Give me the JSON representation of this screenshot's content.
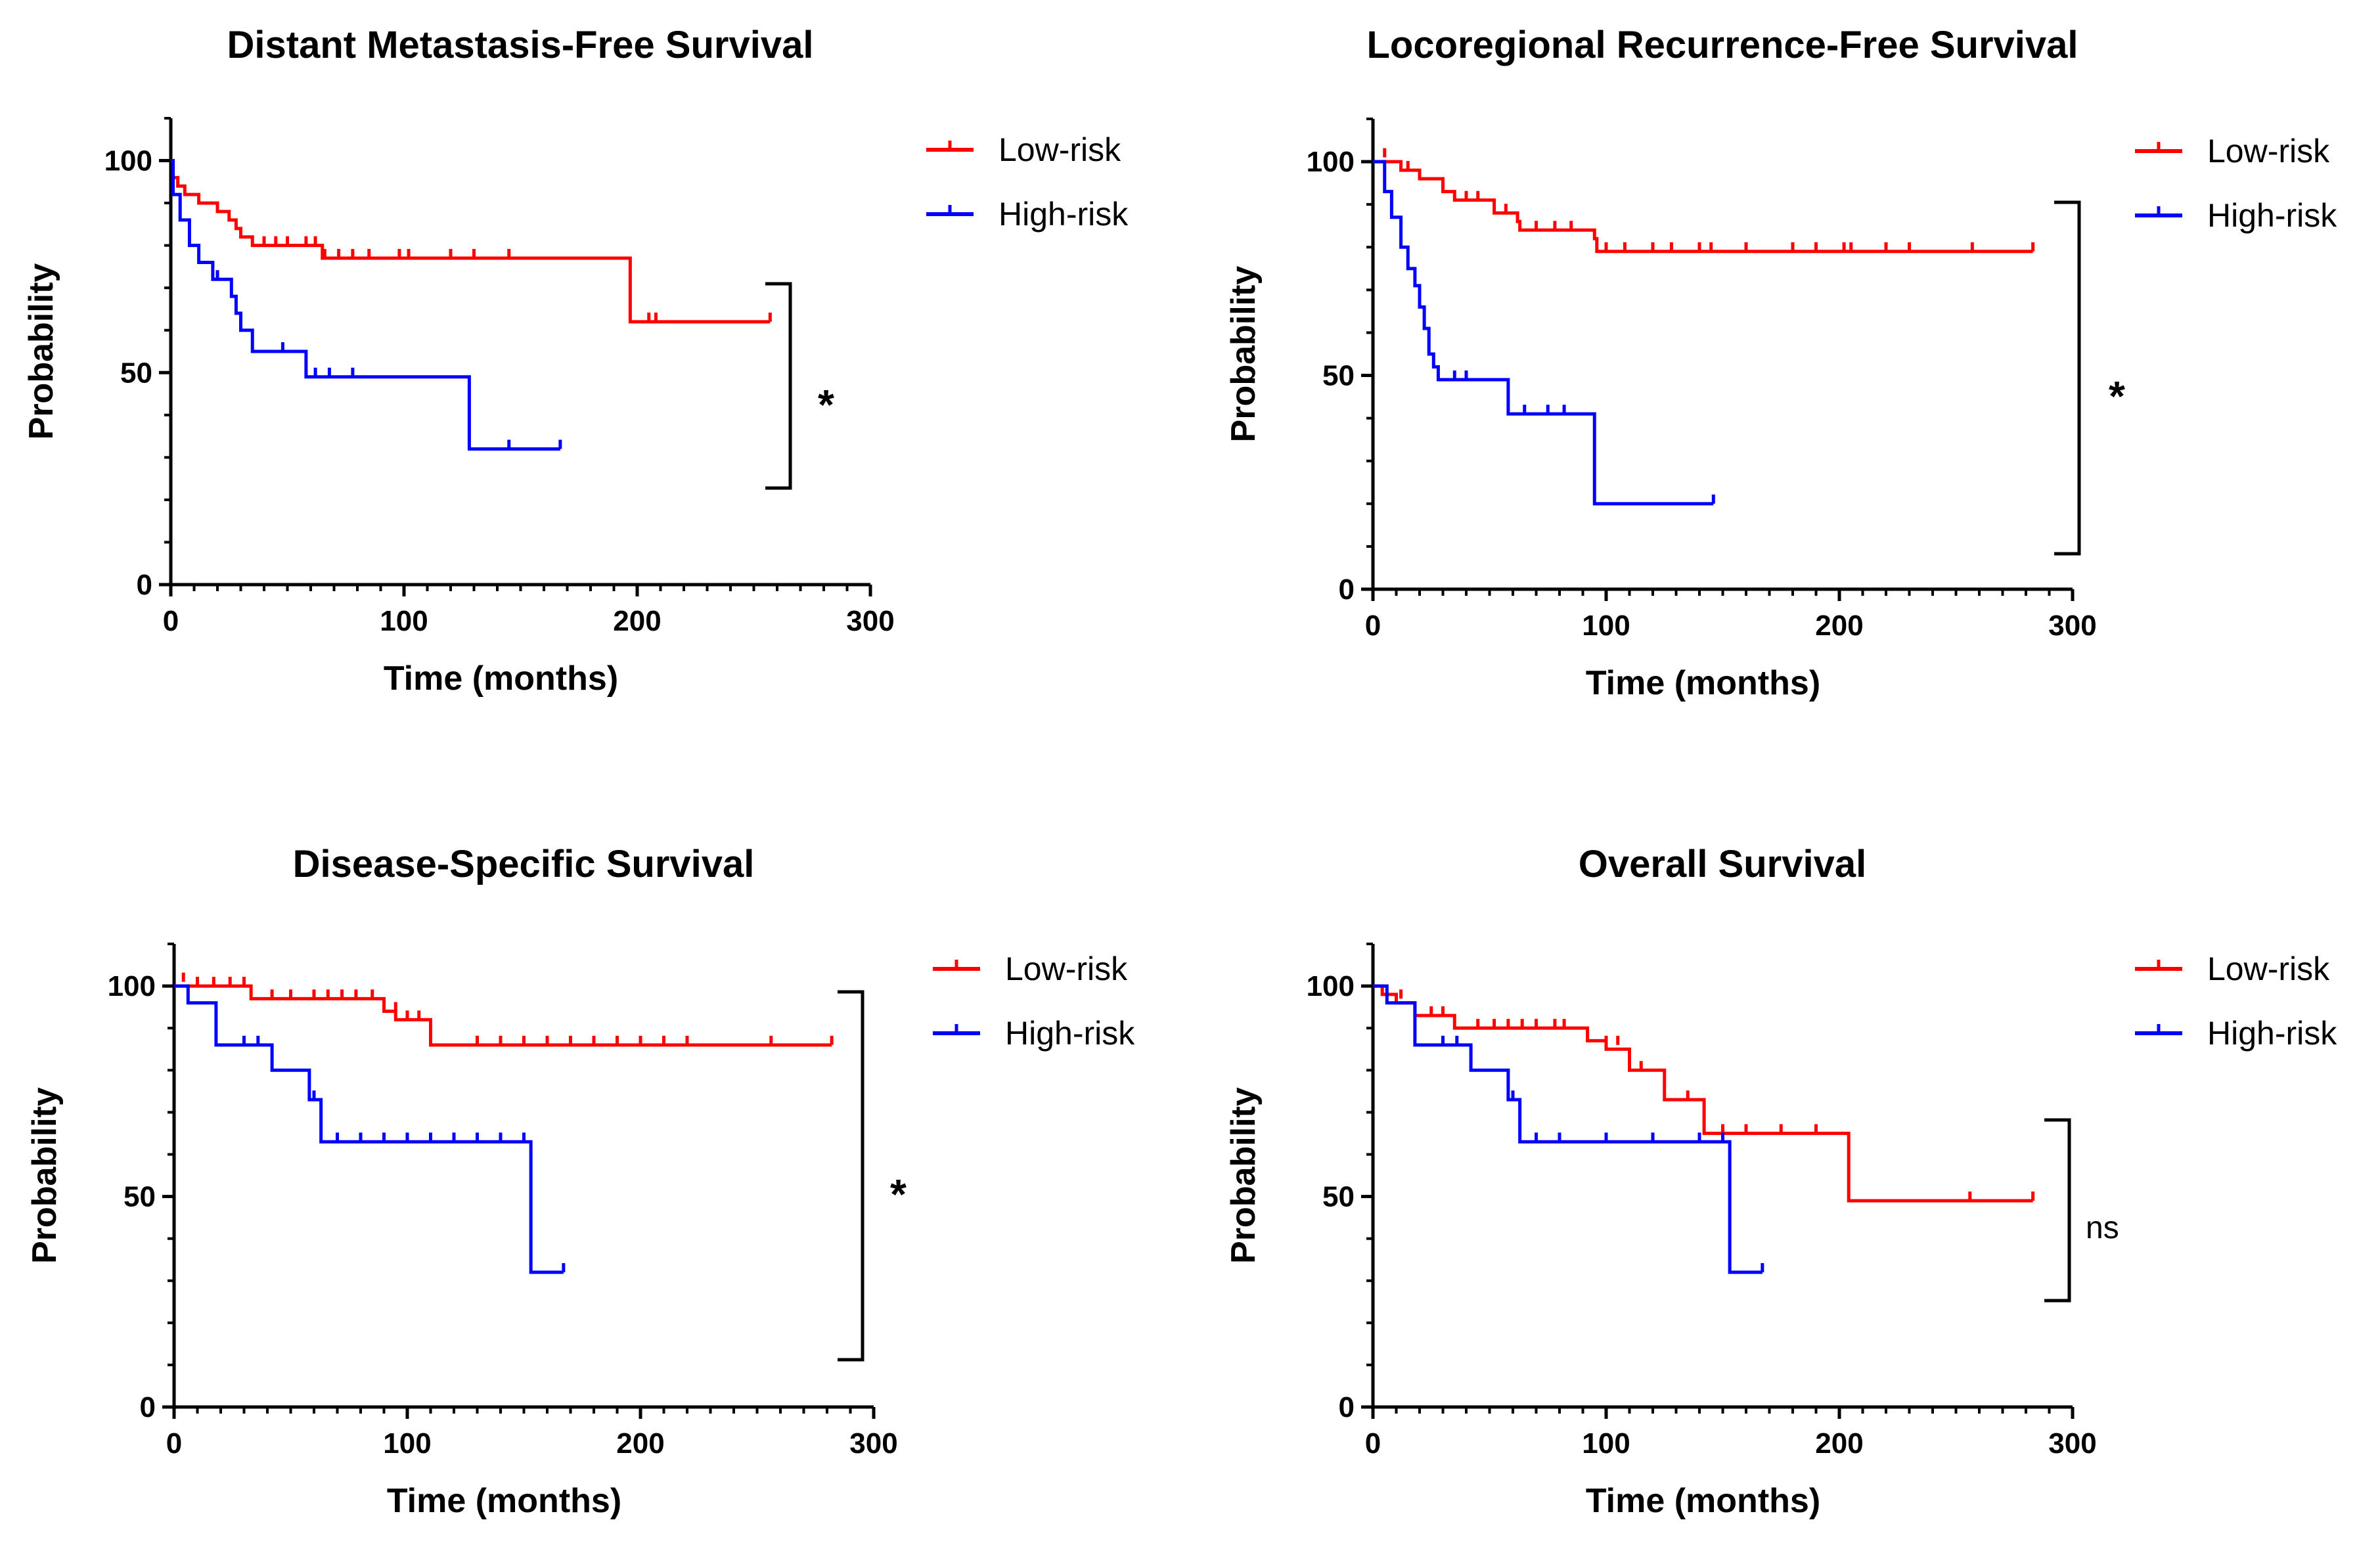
{
  "chart_data": [
    {
      "type": "line",
      "title": "Distant Metastasis-Free Survival",
      "xlabel": "Time (months)",
      "ylabel": "Probability",
      "xlim": [
        0,
        300
      ],
      "ylim": [
        0,
        110
      ],
      "xticks": [
        0,
        100,
        200,
        300
      ],
      "yticks": [
        0,
        50,
        100
      ],
      "significance": "*",
      "series": [
        {
          "name": "Low-risk",
          "color": "#ff0000",
          "steps": [
            [
              0,
              100
            ],
            [
              1,
              96
            ],
            [
              3,
              94
            ],
            [
              6,
              92
            ],
            [
              12,
              90
            ],
            [
              20,
              88
            ],
            [
              25,
              86
            ],
            [
              28,
              84
            ],
            [
              30,
              82
            ],
            [
              35,
              80
            ],
            [
              65,
              77
            ],
            [
              197,
              77
            ],
            [
              197,
              62
            ],
            [
              257,
              62
            ]
          ],
          "censored": [
            [
              40,
              80
            ],
            [
              45,
              80
            ],
            [
              50,
              80
            ],
            [
              58,
              80
            ],
            [
              62,
              80
            ],
            [
              66,
              77
            ],
            [
              72,
              77
            ],
            [
              78,
              77
            ],
            [
              85,
              77
            ],
            [
              98,
              77
            ],
            [
              102,
              77
            ],
            [
              120,
              77
            ],
            [
              130,
              77
            ],
            [
              145,
              77
            ],
            [
              205,
              62
            ],
            [
              208,
              62
            ],
            [
              257,
              62
            ]
          ]
        },
        {
          "name": "High-risk",
          "color": "#0000ff",
          "steps": [
            [
              0,
              100
            ],
            [
              1,
              92
            ],
            [
              4,
              86
            ],
            [
              8,
              80
            ],
            [
              12,
              76
            ],
            [
              18,
              72
            ],
            [
              26,
              68
            ],
            [
              28,
              64
            ],
            [
              30,
              60
            ],
            [
              35,
              55
            ],
            [
              58,
              49
            ],
            [
              128,
              49
            ],
            [
              128,
              32
            ],
            [
              167,
              32
            ]
          ],
          "censored": [
            [
              20,
              72
            ],
            [
              48,
              55
            ],
            [
              62,
              49
            ],
            [
              68,
              49
            ],
            [
              78,
              49
            ],
            [
              145,
              32
            ],
            [
              167,
              32
            ]
          ]
        }
      ]
    },
    {
      "type": "line",
      "title": "Locoregional Recurrence-Free Survival",
      "xlabel": "Time (months)",
      "ylabel": "Probability",
      "xlim": [
        0,
        300
      ],
      "ylim": [
        0,
        110
      ],
      "xticks": [
        0,
        100,
        200,
        300
      ],
      "yticks": [
        0,
        50,
        100
      ],
      "significance": "*",
      "series": [
        {
          "name": "Low-risk",
          "color": "#ff0000",
          "steps": [
            [
              0,
              100
            ],
            [
              10,
              100
            ],
            [
              12,
              98
            ],
            [
              20,
              96
            ],
            [
              30,
              93
            ],
            [
              35,
              91
            ],
            [
              52,
              88
            ],
            [
              62,
              86
            ],
            [
              63,
              84
            ],
            [
              95,
              82
            ],
            [
              96,
              79
            ],
            [
              283,
              79
            ]
          ],
          "censored": [
            [
              5,
              101
            ],
            [
              15,
              98
            ],
            [
              40,
              91
            ],
            [
              45,
              91
            ],
            [
              57,
              88
            ],
            [
              70,
              84
            ],
            [
              78,
              84
            ],
            [
              85,
              84
            ],
            [
              100,
              79
            ],
            [
              108,
              79
            ],
            [
              120,
              79
            ],
            [
              128,
              79
            ],
            [
              140,
              79
            ],
            [
              145,
              79
            ],
            [
              160,
              79
            ],
            [
              180,
              79
            ],
            [
              190,
              79
            ],
            [
              202,
              79
            ],
            [
              205,
              79
            ],
            [
              220,
              79
            ],
            [
              230,
              79
            ],
            [
              257,
              79
            ],
            [
              283,
              79
            ]
          ]
        },
        {
          "name": "High-risk",
          "color": "#0000ff",
          "steps": [
            [
              0,
              100
            ],
            [
              5,
              93
            ],
            [
              8,
              87
            ],
            [
              12,
              80
            ],
            [
              15,
              75
            ],
            [
              18,
              71
            ],
            [
              20,
              66
            ],
            [
              22,
              61
            ],
            [
              24,
              55
            ],
            [
              26,
              52
            ],
            [
              28,
              49
            ],
            [
              58,
              41
            ],
            [
              95,
              41
            ],
            [
              95,
              20
            ],
            [
              146,
              20
            ]
          ],
          "censored": [
            [
              35,
              49
            ],
            [
              40,
              49
            ],
            [
              65,
              41
            ],
            [
              75,
              41
            ],
            [
              82,
              41
            ],
            [
              146,
              20
            ]
          ]
        }
      ]
    },
    {
      "type": "line",
      "title": "Disease-Specific Survival",
      "xlabel": "Time (months)",
      "ylabel": "Probability",
      "xlim": [
        0,
        300
      ],
      "ylim": [
        0,
        110
      ],
      "xticks": [
        0,
        100,
        200,
        300
      ],
      "yticks": [
        0,
        50,
        100
      ],
      "significance": "*",
      "series": [
        {
          "name": "Low-risk",
          "color": "#ff0000",
          "steps": [
            [
              0,
              100
            ],
            [
              33,
              100
            ],
            [
              33,
              97
            ],
            [
              90,
              97
            ],
            [
              90,
              94
            ],
            [
              95,
              92
            ],
            [
              110,
              92
            ],
            [
              110,
              86
            ],
            [
              282,
              86
            ]
          ],
          "censored": [
            [
              4,
              101
            ],
            [
              10,
              100
            ],
            [
              17,
              100
            ],
            [
              24,
              100
            ],
            [
              30,
              100
            ],
            [
              42,
              97
            ],
            [
              50,
              97
            ],
            [
              60,
              97
            ],
            [
              66,
              97
            ],
            [
              72,
              97
            ],
            [
              78,
              97
            ],
            [
              85,
              97
            ],
            [
              95,
              94
            ],
            [
              100,
              92
            ],
            [
              105,
              92
            ],
            [
              130,
              86
            ],
            [
              140,
              86
            ],
            [
              150,
              86
            ],
            [
              160,
              86
            ],
            [
              170,
              86
            ],
            [
              180,
              86
            ],
            [
              190,
              86
            ],
            [
              200,
              86
            ],
            [
              210,
              86
            ],
            [
              220,
              86
            ],
            [
              256,
              86
            ],
            [
              282,
              86
            ]
          ]
        },
        {
          "name": "High-risk",
          "color": "#0000ff",
          "steps": [
            [
              0,
              100
            ],
            [
              6,
              96
            ],
            [
              18,
              86
            ],
            [
              42,
              80
            ],
            [
              58,
              73
            ],
            [
              63,
              63
            ],
            [
              153,
              63
            ],
            [
              153,
              32
            ],
            [
              167,
              32
            ]
          ],
          "censored": [
            [
              30,
              86
            ],
            [
              36,
              86
            ],
            [
              60,
              73
            ],
            [
              70,
              63
            ],
            [
              80,
              63
            ],
            [
              90,
              63
            ],
            [
              100,
              63
            ],
            [
              110,
              63
            ],
            [
              120,
              63
            ],
            [
              130,
              63
            ],
            [
              140,
              63
            ],
            [
              150,
              63
            ],
            [
              167,
              32
            ]
          ]
        }
      ]
    },
    {
      "type": "line",
      "title": "Overall Survival",
      "xlabel": "Time (months)",
      "ylabel": "Probability",
      "xlim": [
        0,
        300
      ],
      "ylim": [
        0,
        110
      ],
      "xticks": [
        0,
        100,
        200,
        300
      ],
      "yticks": [
        0,
        50,
        100
      ],
      "significance": "ns",
      "series": [
        {
          "name": "Low-risk",
          "color": "#ff0000",
          "steps": [
            [
              0,
              100
            ],
            [
              4,
              98
            ],
            [
              10,
              96
            ],
            [
              18,
              93
            ],
            [
              35,
              90
            ],
            [
              90,
              90
            ],
            [
              92,
              87
            ],
            [
              100,
              85
            ],
            [
              110,
              80
            ],
            [
              125,
              80
            ],
            [
              125,
              73
            ],
            [
              142,
              73
            ],
            [
              142,
              65
            ],
            [
              204,
              65
            ],
            [
              204,
              49
            ],
            [
              283,
              49
            ]
          ],
          "censored": [
            [
              12,
              97
            ],
            [
              25,
              93
            ],
            [
              30,
              93
            ],
            [
              45,
              90
            ],
            [
              52,
              90
            ],
            [
              58,
              90
            ],
            [
              64,
              90
            ],
            [
              70,
              90
            ],
            [
              78,
              90
            ],
            [
              82,
              90
            ],
            [
              100,
              86
            ],
            [
              105,
              86
            ],
            [
              115,
              80
            ],
            [
              135,
              73
            ],
            [
              150,
              65
            ],
            [
              160,
              65
            ],
            [
              175,
              65
            ],
            [
              190,
              65
            ],
            [
              256,
              49
            ],
            [
              283,
              49
            ]
          ]
        },
        {
          "name": "High-risk",
          "color": "#0000ff",
          "steps": [
            [
              0,
              100
            ],
            [
              6,
              96
            ],
            [
              18,
              86
            ],
            [
              42,
              80
            ],
            [
              58,
              73
            ],
            [
              63,
              63
            ],
            [
              153,
              63
            ],
            [
              153,
              32
            ],
            [
              167,
              32
            ]
          ],
          "censored": [
            [
              30,
              86
            ],
            [
              36,
              86
            ],
            [
              60,
              73
            ],
            [
              70,
              63
            ],
            [
              80,
              63
            ],
            [
              100,
              63
            ],
            [
              120,
              63
            ],
            [
              140,
              63
            ],
            [
              150,
              63
            ],
            [
              167,
              32
            ]
          ]
        }
      ]
    }
  ]
}
